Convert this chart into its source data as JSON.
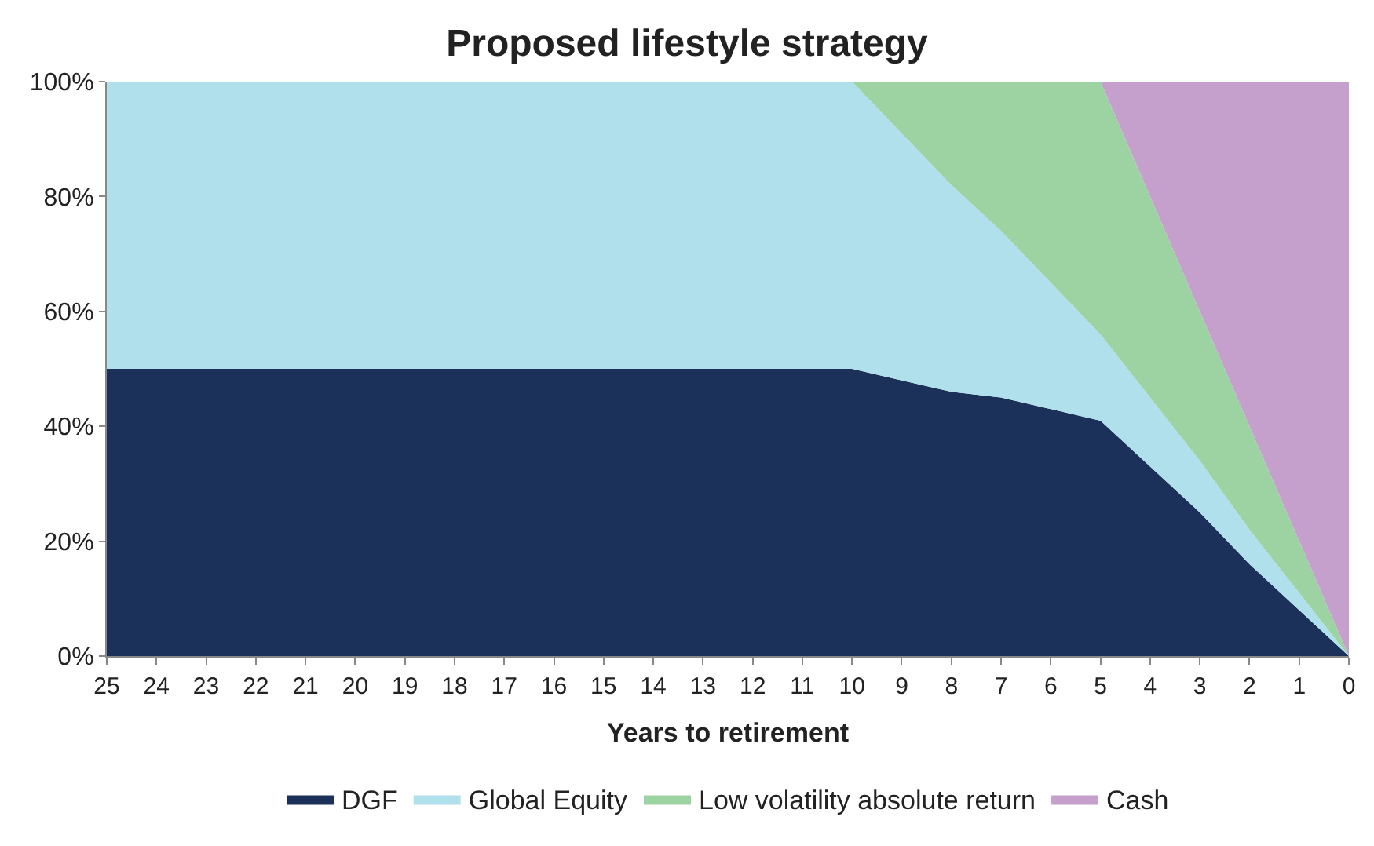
{
  "chart_data": {
    "type": "area",
    "stacked": true,
    "title": "Proposed lifestyle strategy",
    "xlabel": "Years to retirement",
    "categories": [
      "25",
      "24",
      "23",
      "22",
      "21",
      "20",
      "19",
      "18",
      "17",
      "16",
      "15",
      "14",
      "13",
      "12",
      "11",
      "10",
      "9",
      "8",
      "7",
      "6",
      "5",
      "4",
      "3",
      "2",
      "1",
      "0"
    ],
    "series": [
      {
        "name": "DGF",
        "color": "#1b3159",
        "values": [
          50,
          50,
          50,
          50,
          50,
          50,
          50,
          50,
          50,
          50,
          50,
          50,
          50,
          50,
          50,
          50,
          48,
          46,
          45,
          43,
          41,
          33,
          25,
          16,
          8,
          0
        ]
      },
      {
        "name": "Global Equity",
        "color": "#b0e0ec",
        "values": [
          50,
          50,
          50,
          50,
          50,
          50,
          50,
          50,
          50,
          50,
          50,
          50,
          50,
          50,
          50,
          50,
          43,
          36,
          29,
          22,
          15,
          12,
          9,
          6,
          3,
          0
        ]
      },
      {
        "name": "Low volatility absolute return",
        "color": "#9dd3a2",
        "values": [
          null,
          null,
          null,
          null,
          null,
          null,
          null,
          null,
          null,
          null,
          null,
          null,
          null,
          null,
          null,
          0,
          9,
          18,
          26,
          35,
          44,
          35,
          26,
          18,
          9,
          0
        ]
      },
      {
        "name": "Cash",
        "color": "#c5a0cc",
        "values": [
          null,
          null,
          null,
          null,
          null,
          null,
          null,
          null,
          null,
          null,
          null,
          null,
          null,
          null,
          null,
          null,
          null,
          null,
          null,
          null,
          0,
          20,
          40,
          60,
          80,
          100
        ]
      }
    ],
    "ylim": [
      0,
      100
    ],
    "yticks": [
      {
        "value": 0,
        "label": "0%"
      },
      {
        "value": 20,
        "label": "20%"
      },
      {
        "value": 40,
        "label": "40%"
      },
      {
        "value": 60,
        "label": "60%"
      },
      {
        "value": 80,
        "label": "80%"
      },
      {
        "value": 100,
        "label": "100%"
      }
    ],
    "legend": "bottom",
    "marker": "none"
  }
}
